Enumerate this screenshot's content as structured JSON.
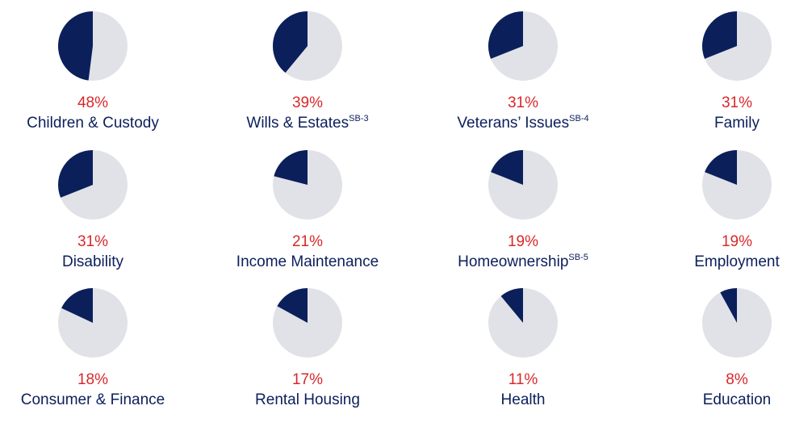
{
  "chart_data": [
    {
      "type": "pie",
      "title": "Children & Custody",
      "values": [
        48
      ],
      "value_labels": [
        "48%"
      ],
      "color": "#0b1f5b",
      "track_color": "#e1e2e7"
    },
    {
      "type": "pie",
      "title": "Wills & Estates",
      "footnote": "SB-3",
      "values": [
        39
      ],
      "value_labels": [
        "39%"
      ],
      "color": "#0b1f5b",
      "track_color": "#e1e2e7"
    },
    {
      "type": "pie",
      "title": "Veterans’ Issues",
      "footnote": "SB-4",
      "values": [
        31
      ],
      "value_labels": [
        "31%"
      ],
      "color": "#0b1f5b",
      "track_color": "#e1e2e7"
    },
    {
      "type": "pie",
      "title": "Family",
      "values": [
        31
      ],
      "value_labels": [
        "31%"
      ],
      "color": "#0b1f5b",
      "track_color": "#e1e2e7"
    },
    {
      "type": "pie",
      "title": "Disability",
      "values": [
        31
      ],
      "value_labels": [
        "31%"
      ],
      "color": "#0b1f5b",
      "track_color": "#e1e2e7"
    },
    {
      "type": "pie",
      "title": "Income Maintenance",
      "values": [
        21
      ],
      "value_labels": [
        "21%"
      ],
      "color": "#0b1f5b",
      "track_color": "#e1e2e7"
    },
    {
      "type": "pie",
      "title": "Homeownership",
      "footnote": "SB-5",
      "values": [
        19
      ],
      "value_labels": [
        "19%"
      ],
      "color": "#0b1f5b",
      "track_color": "#e1e2e7"
    },
    {
      "type": "pie",
      "title": "Employment",
      "values": [
        19
      ],
      "value_labels": [
        "19%"
      ],
      "color": "#0b1f5b",
      "track_color": "#e1e2e7"
    },
    {
      "type": "pie",
      "title": "Consumer & Finance",
      "values": [
        18
      ],
      "value_labels": [
        "18%"
      ],
      "color": "#0b1f5b",
      "track_color": "#e1e2e7"
    },
    {
      "type": "pie",
      "title": "Rental Housing",
      "values": [
        17
      ],
      "value_labels": [
        "17%"
      ],
      "color": "#0b1f5b",
      "track_color": "#e1e2e7"
    },
    {
      "type": "pie",
      "title": "Health",
      "values": [
        11
      ],
      "value_labels": [
        "11%"
      ],
      "color": "#0b1f5b",
      "track_color": "#e1e2e7"
    },
    {
      "type": "pie",
      "title": "Education",
      "values": [
        8
      ],
      "value_labels": [
        "8%"
      ],
      "color": "#0b1f5b",
      "track_color": "#e1e2e7"
    }
  ]
}
